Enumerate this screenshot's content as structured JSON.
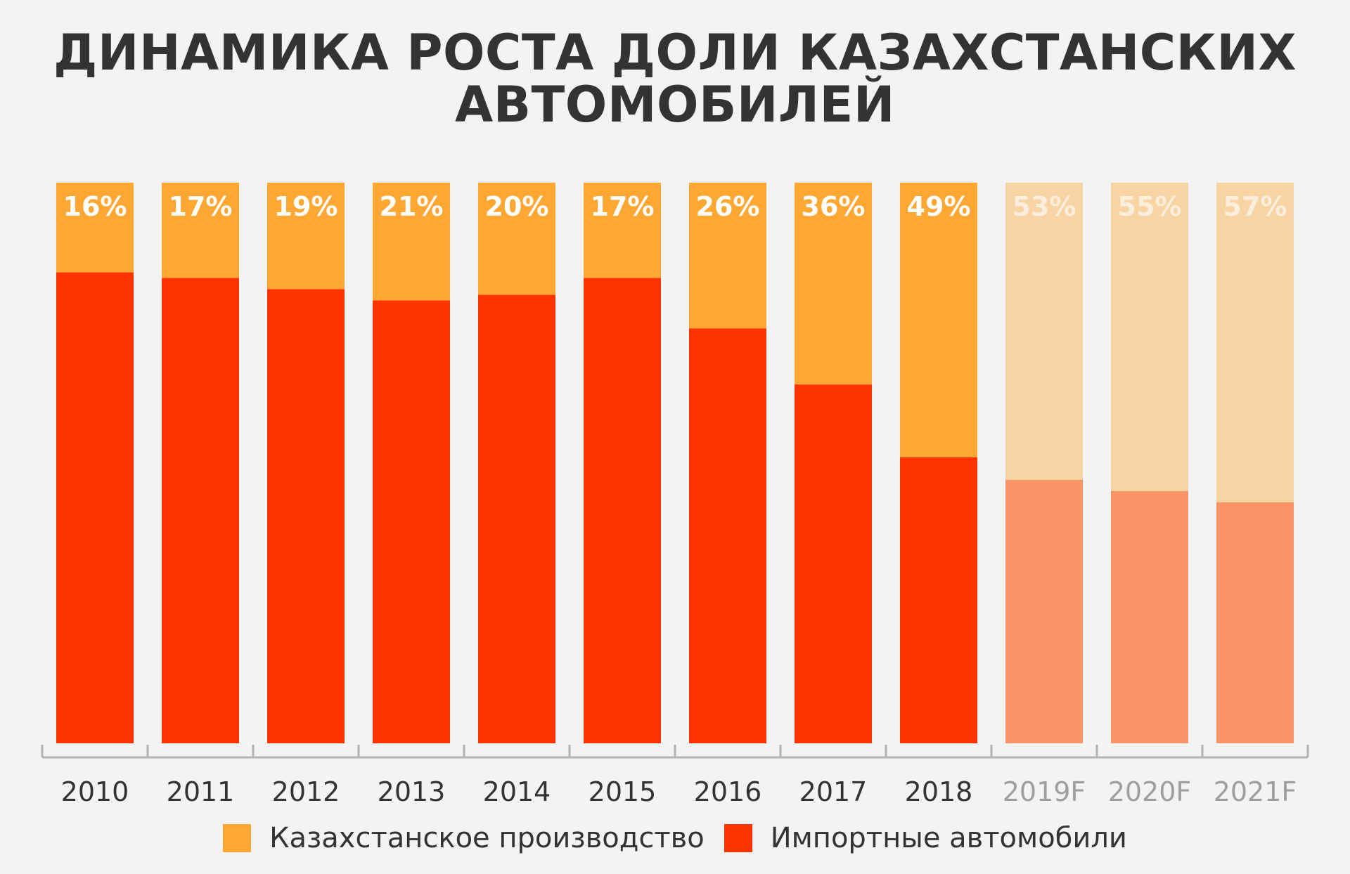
{
  "title": {
    "line1": "ДИНАМИКА РОСТА ДОЛИ КАЗАХСТАНСКИХ",
    "line2": "АВТОМОБИЛЕЙ"
  },
  "colors": {
    "domestic": "#ffa733",
    "imported": "#ff3300",
    "domestic_forecast": "#f8d4a4",
    "imported_forecast": "#f99466",
    "label_actual": "#ffffff",
    "label_forecast": "#fbeedd",
    "axis": "#b3b3b3",
    "tick_text_actual": "#333333",
    "tick_text_forecast": "#9e9e9e"
  },
  "chart_data": {
    "type": "bar",
    "stacked": true,
    "normalized": true,
    "categories": [
      "2010",
      "2011",
      "2012",
      "2013",
      "2014",
      "2015",
      "2016",
      "2017",
      "2018",
      "2019F",
      "2020F",
      "2021F"
    ],
    "forecast": [
      false,
      false,
      false,
      false,
      false,
      false,
      false,
      false,
      false,
      true,
      true,
      true
    ],
    "series": [
      {
        "name": "Казахстанское производство",
        "values": [
          16,
          17,
          19,
          21,
          20,
          17,
          26,
          36,
          49,
          53,
          55,
          57
        ]
      },
      {
        "name": "Импортные автомобили",
        "values": [
          84,
          83,
          81,
          79,
          80,
          83,
          74,
          64,
          51,
          47,
          45,
          43
        ]
      }
    ],
    "data_labels": [
      "16%",
      "17%",
      "19%",
      "21%",
      "20%",
      "17%",
      "26%",
      "36%",
      "49%",
      "53%",
      "55%",
      "57%"
    ],
    "ylim": [
      0,
      100
    ],
    "grid": false,
    "legend_position": "bottom-center"
  },
  "legend": {
    "items": [
      "Казахстанское производство",
      "Импортные автомобили"
    ]
  }
}
